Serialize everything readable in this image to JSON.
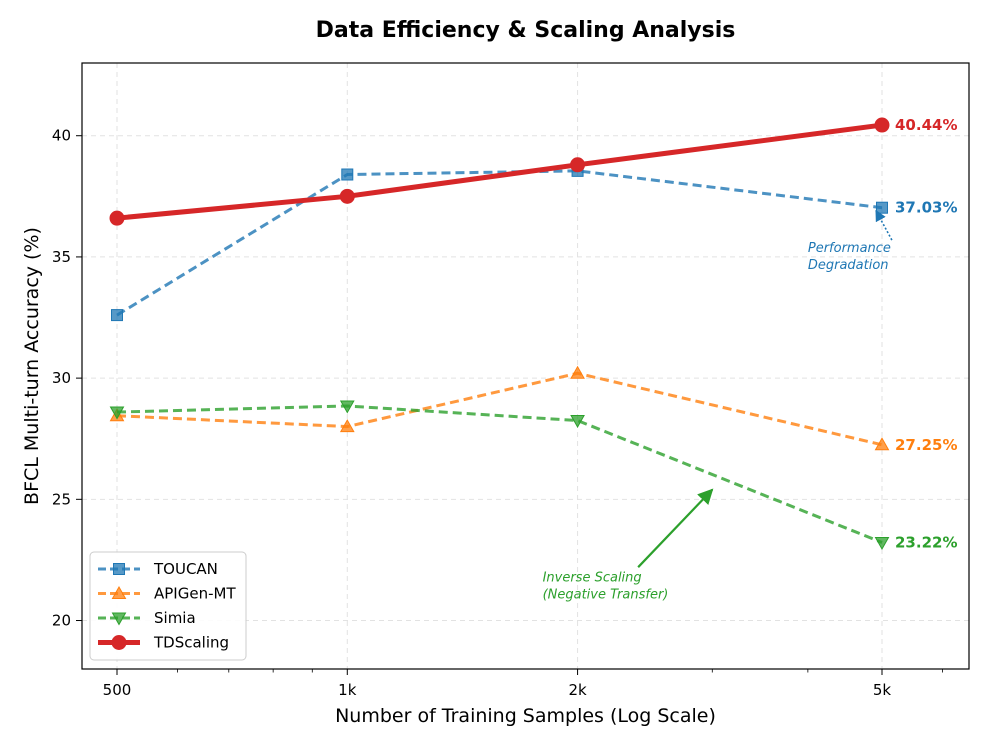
{
  "chart_data": {
    "type": "line",
    "title": "Data Efficiency & Scaling Analysis",
    "xlabel": "Number of Training Samples (Log Scale)",
    "ylabel": "BFCL Multi-turn Accuracy (%)",
    "xscale": "log",
    "x": [
      500,
      1000,
      2000,
      5000
    ],
    "xtick_labels": [
      "500",
      "1k",
      "2k",
      "5k"
    ],
    "ylim": [
      18,
      43
    ],
    "yticks": [
      20,
      25,
      30,
      35,
      40
    ],
    "grid": true,
    "legend_position": "lower-left",
    "series": [
      {
        "name": "TOUCAN",
        "color": "#1f77b4",
        "marker": "square",
        "style": "dashed",
        "values": [
          32.6,
          38.4,
          38.55,
          37.03
        ],
        "end_label": "37.03%"
      },
      {
        "name": "APIGen-MT",
        "color": "#ff7f0e",
        "marker": "triangle-up",
        "style": "dashed",
        "values": [
          28.45,
          28.0,
          30.2,
          27.25
        ],
        "end_label": "27.25%"
      },
      {
        "name": "Simia",
        "color": "#2ca02c",
        "marker": "triangle-down",
        "style": "dashed",
        "values": [
          28.6,
          28.85,
          28.25,
          23.22
        ],
        "end_label": "23.22%"
      },
      {
        "name": "TDScaling",
        "color": "#d62728",
        "marker": "circle",
        "style": "solid",
        "values": [
          36.6,
          37.5,
          38.8,
          40.44
        ],
        "end_label": "40.44%"
      }
    ],
    "annotations": [
      {
        "text_lines": [
          "Performance",
          "Degradation"
        ],
        "color": "#1f77b4",
        "x": 4000,
        "y": 35.2,
        "arrow_to_x": 5000,
        "arrow_to_y": 37.03,
        "arrow_style": "dotted"
      },
      {
        "text_lines": [
          "Inverse Scaling",
          "(Negative Transfer)"
        ],
        "color": "#2ca02c",
        "x": 1800,
        "y": 21.6,
        "arrow_from_x": 2400,
        "arrow_from_y": 22.2,
        "arrow_to_x": 3000,
        "arrow_to_y": 25.4,
        "arrow_style": "solid"
      }
    ]
  }
}
